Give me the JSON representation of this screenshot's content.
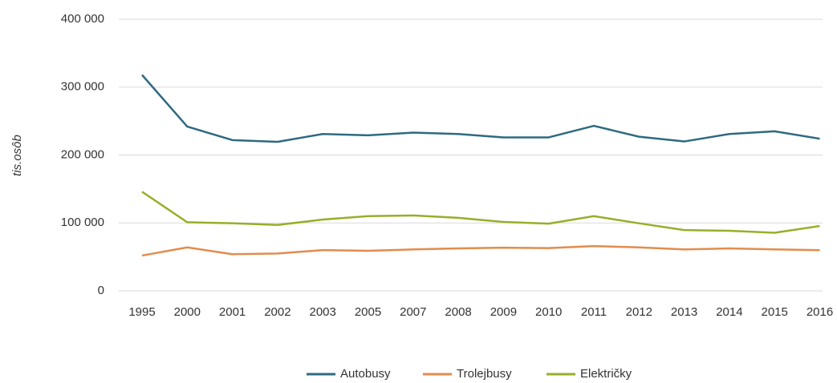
{
  "chart_data": {
    "type": "line",
    "y_label": "tis.osôb",
    "categories": [
      "1995",
      "2000",
      "2001",
      "2002",
      "2003",
      "2005",
      "2007",
      "2008",
      "2009",
      "2010",
      "2011",
      "2012",
      "2013",
      "2014",
      "2015",
      "2016"
    ],
    "series": [
      {
        "name": "Autobusy",
        "color": "#2f6a80",
        "values": [
          318000,
          242000,
          222000,
          219500,
          231000,
          229000,
          233000,
          231000,
          226000,
          226000,
          243000,
          227000,
          220000,
          231000,
          235000,
          224000
        ]
      },
      {
        "name": "Trolejbusy",
        "color": "#e28c4c",
        "values": [
          52000,
          64000,
          54000,
          55000,
          60000,
          59000,
          61000,
          62500,
          63500,
          63000,
          66000,
          64000,
          61000,
          62500,
          61000,
          60000
        ]
      },
      {
        "name": "Električky",
        "color": "#9aad2a",
        "values": [
          146000,
          101000,
          99500,
          97000,
          105000,
          110000,
          111000,
          107500,
          101500,
          99000,
          110000,
          99500,
          89500,
          88500,
          85500,
          95500
        ]
      }
    ],
    "ylim": [
      0,
      400000
    ],
    "yticks": [
      {
        "value": 0,
        "label": "0"
      },
      {
        "value": 100000,
        "label": "100 000"
      },
      {
        "value": 200000,
        "label": "200 000"
      },
      {
        "value": 300000,
        "label": "300 000"
      },
      {
        "value": 400000,
        "label": "400 000"
      }
    ],
    "grid": true,
    "legend": "bottom"
  }
}
